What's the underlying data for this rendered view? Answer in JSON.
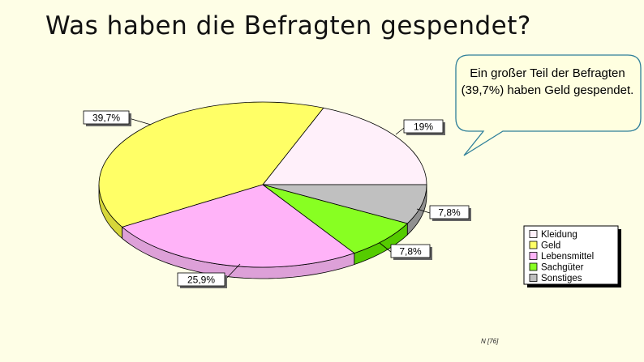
{
  "slide": {
    "title": "Was haben die Befragten gespendet?",
    "callout": "Ein großer Teil der Befragten (39,7%) haben Geld gespendet.",
    "note": "N [76]"
  },
  "chart_data": {
    "type": "pie",
    "title": "Was haben die Befragten gespendet?",
    "categories": [
      "Kleidung",
      "Geld",
      "Lebensmittel",
      "Sachgüter",
      "Sonstiges"
    ],
    "values": [
      19,
      39.7,
      25.9,
      7.8,
      7.8
    ],
    "labels": [
      "19%",
      "39,7%",
      "25,9%",
      "7,8%",
      "7,8%"
    ],
    "colors": [
      "#fff0fa",
      "#ffff66",
      "#ffb3f8",
      "#88ff22",
      "#c0c0c0"
    ],
    "side_colors": [
      "#e8d8e4",
      "#d6d63a",
      "#dda0d8",
      "#55cc00",
      "#909090"
    ],
    "legend_position": "lower-right",
    "three_d": true
  }
}
